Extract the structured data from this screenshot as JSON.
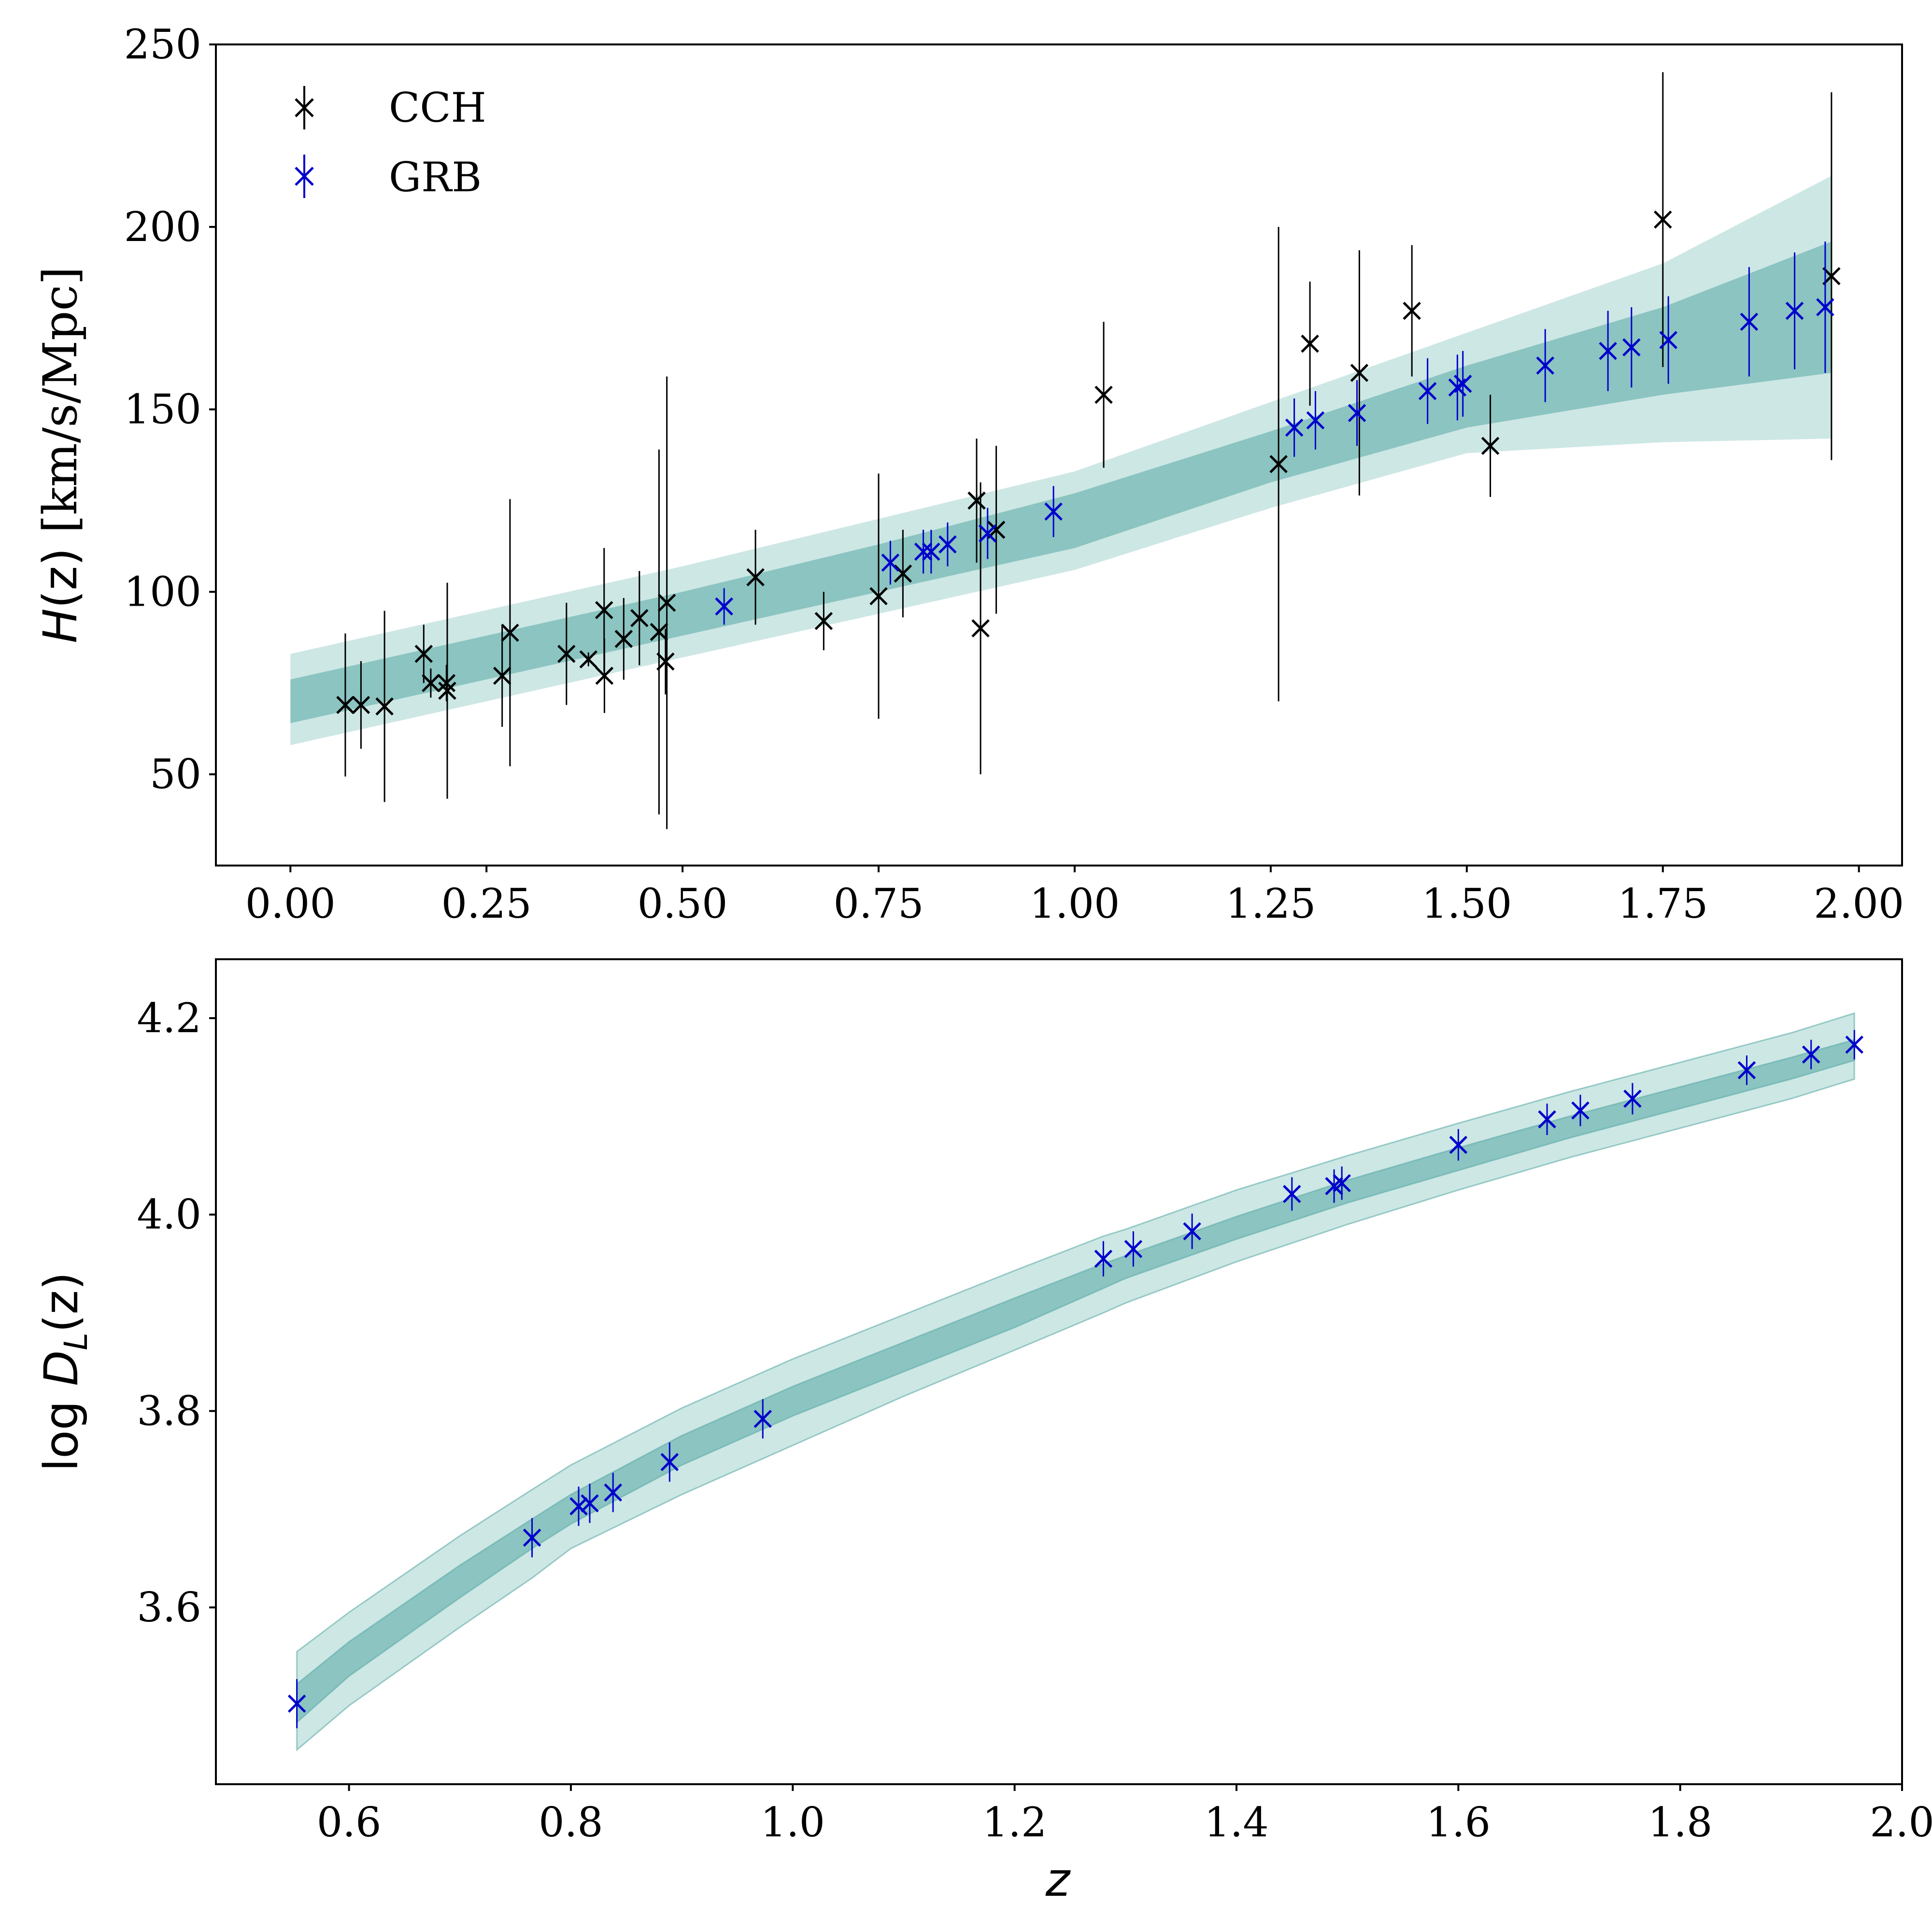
{
  "colors": {
    "cch": "#000000",
    "grb": "#0000cc",
    "band_inner": "#5fada8",
    "band_outer": "#a4d3d0",
    "band_edge": "#5fada8"
  },
  "chart_data": [
    {
      "type": "scatter",
      "panel": "top",
      "title": "",
      "xlabel": "",
      "ylabel_parts": {
        "symbol": "H",
        "arg": "(z)",
        "units": " [km/s/Mpc]"
      },
      "xlim": [
        -0.095,
        2.055
      ],
      "ylim": [
        25,
        250
      ],
      "xticks": [
        0.0,
        0.25,
        0.5,
        0.75,
        1.0,
        1.25,
        1.5,
        1.75,
        2.0
      ],
      "xtick_labels": [
        "0.00",
        "0.25",
        "0.50",
        "0.75",
        "1.00",
        "1.25",
        "1.50",
        "1.75",
        "2.00"
      ],
      "yticks": [
        50,
        100,
        150,
        200,
        250
      ],
      "ytick_labels": [
        "50",
        "100",
        "150",
        "200",
        "250"
      ],
      "legend": {
        "position": "top-left",
        "entries": [
          "CCH",
          "GRB"
        ]
      },
      "band": {
        "x": [
          0.0,
          0.25,
          0.5,
          0.75,
          1.0,
          1.25,
          1.5,
          1.75,
          1.965
        ],
        "inner_lo": [
          64,
          76,
          88,
          100,
          112,
          130,
          145,
          154,
          160
        ],
        "inner_hi": [
          76,
          88,
          100,
          113,
          127,
          144,
          162,
          178,
          196
        ],
        "outer_lo": [
          58,
          70,
          82,
          94,
          106,
          123,
          138,
          141,
          142
        ],
        "outer_hi": [
          83,
          95,
          107,
          120,
          133,
          152,
          171,
          190,
          214
        ]
      },
      "series": [
        {
          "name": "CCH",
          "x": [
            0.07,
            0.09,
            0.12,
            0.17,
            0.179,
            0.199,
            0.2,
            0.27,
            0.28,
            0.352,
            0.38,
            0.4,
            0.4004,
            0.425,
            0.445,
            0.47,
            0.4783,
            0.48,
            0.593,
            0.68,
            0.75,
            0.781,
            0.875,
            0.88,
            0.9,
            1.037,
            1.26,
            1.3,
            1.363,
            1.43,
            1.53,
            1.75,
            1.965
          ],
          "y": [
            69,
            69,
            68.6,
            83,
            75,
            75,
            72.9,
            77,
            88.8,
            83,
            81.5,
            95,
            77,
            87.1,
            92.8,
            89,
            80.9,
            97,
            104,
            92,
            98.8,
            105,
            125,
            90,
            117,
            154,
            135,
            168,
            160,
            177,
            140,
            202,
            186.5
          ],
          "err": [
            19.6,
            12,
            26.2,
            8,
            4,
            5,
            29.6,
            14,
            36.6,
            14,
            1.9,
            17,
            10.2,
            11.2,
            12.9,
            50,
            9,
            62,
            13,
            8,
            33.6,
            12,
            17,
            40,
            23,
            20,
            65,
            17,
            33.6,
            18,
            14,
            40.4,
            50.4
          ]
        },
        {
          "name": "GRB",
          "x": [
            0.553,
            0.765,
            0.807,
            0.817,
            0.838,
            0.889,
            0.973,
            1.28,
            1.307,
            1.36,
            1.45,
            1.488,
            1.495,
            1.6,
            1.68,
            1.71,
            1.757,
            1.86,
            1.918,
            1.957
          ],
          "y": [
            96,
            108,
            111,
            111,
            113,
            116,
            122,
            145,
            147,
            149,
            155,
            156,
            157,
            162,
            166,
            167,
            169,
            174,
            177,
            178
          ],
          "err": [
            5,
            6,
            6,
            6,
            6,
            7,
            7,
            8,
            8,
            9,
            9,
            9,
            9,
            10,
            11,
            11,
            12,
            15,
            16,
            18
          ]
        }
      ]
    },
    {
      "type": "scatter",
      "panel": "bottom",
      "title": "",
      "xlabel": "z",
      "ylabel_parts": {
        "prefix": "log",
        "symbol": "D",
        "subscript": "L",
        "arg": "(z)"
      },
      "xlim": [
        0.48,
        2.0
      ],
      "ylim": [
        3.42,
        4.26
      ],
      "xticks": [
        0.6,
        0.8,
        1.0,
        1.2,
        1.4,
        1.6,
        1.8,
        2.0
      ],
      "xtick_labels": [
        "0.6",
        "0.8",
        "1.0",
        "1.2",
        "1.4",
        "1.6",
        "1.8",
        "2.0"
      ],
      "yticks": [
        3.6,
        3.8,
        4.0,
        4.2
      ],
      "ytick_labels": [
        "3.6",
        "3.8",
        "4.0",
        "4.2"
      ],
      "band": {
        "x": [
          0.553,
          0.6,
          0.7,
          0.765,
          0.8,
          0.9,
          1.0,
          1.1,
          1.2,
          1.28,
          1.3,
          1.4,
          1.5,
          1.6,
          1.7,
          1.8,
          1.9,
          1.957
        ],
        "inner_lo": [
          3.483,
          3.53,
          3.61,
          3.66,
          3.685,
          3.745,
          3.795,
          3.84,
          3.885,
          3.925,
          3.935,
          3.975,
          4.012,
          4.045,
          4.078,
          4.108,
          4.138,
          4.157
        ],
        "inner_hi": [
          3.522,
          3.565,
          3.643,
          3.69,
          3.715,
          3.775,
          3.825,
          3.87,
          3.915,
          3.95,
          3.958,
          3.998,
          4.035,
          4.068,
          4.1,
          4.13,
          4.16,
          4.178
        ],
        "outer_lo": [
          3.455,
          3.5,
          3.58,
          3.63,
          3.66,
          3.715,
          3.765,
          3.815,
          3.862,
          3.9,
          3.91,
          3.952,
          3.99,
          4.025,
          4.058,
          4.088,
          4.118,
          4.138
        ],
        "outer_hi": [
          3.555,
          3.595,
          3.673,
          3.72,
          3.745,
          3.803,
          3.853,
          3.898,
          3.943,
          3.978,
          3.985,
          4.025,
          4.06,
          4.093,
          4.125,
          4.155,
          4.185,
          4.205
        ]
      },
      "series": [
        {
          "name": "GRB",
          "x": [
            0.553,
            0.765,
            0.807,
            0.817,
            0.838,
            0.889,
            0.973,
            1.28,
            1.307,
            1.36,
            1.45,
            1.488,
            1.495,
            1.6,
            1.68,
            1.71,
            1.757,
            1.86,
            1.918,
            1.957
          ],
          "y": [
            3.502,
            3.671,
            3.703,
            3.706,
            3.717,
            3.748,
            3.792,
            3.955,
            3.965,
            3.983,
            4.021,
            4.029,
            4.032,
            4.071,
            4.097,
            4.106,
            4.118,
            4.147,
            4.163,
            4.173
          ],
          "err": [
            0.025,
            0.02,
            0.02,
            0.02,
            0.02,
            0.02,
            0.02,
            0.018,
            0.018,
            0.018,
            0.017,
            0.017,
            0.017,
            0.016,
            0.016,
            0.016,
            0.016,
            0.015,
            0.015,
            0.015
          ]
        }
      ]
    }
  ]
}
